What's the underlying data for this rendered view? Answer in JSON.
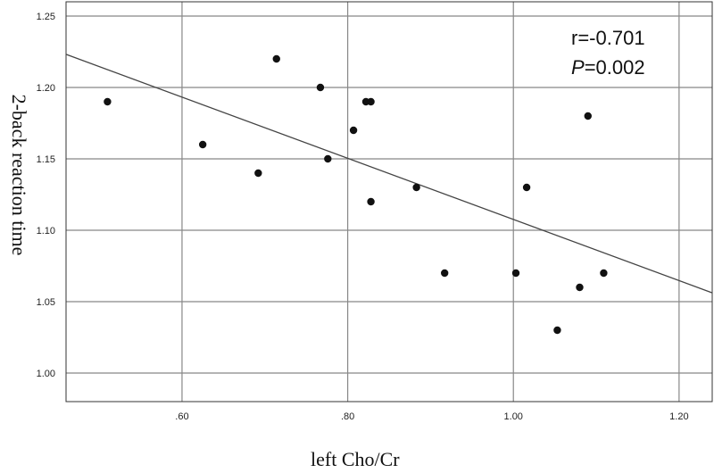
{
  "chart_data": {
    "type": "scatter",
    "title": "",
    "xlabel": "left Cho/Cr",
    "ylabel": "2-back reaction time",
    "xlim": [
      0.46,
      1.24
    ],
    "ylim": [
      0.98,
      1.26
    ],
    "x_ticks": [
      {
        "value": 0.6,
        "label": ".60"
      },
      {
        "value": 0.8,
        "label": ".80"
      },
      {
        "value": 1.0,
        "label": "1.00"
      },
      {
        "value": 1.2,
        "label": "1.20"
      }
    ],
    "y_ticks": [
      {
        "value": 1.0,
        "label": "1.00"
      },
      {
        "value": 1.05,
        "label": "1.05"
      },
      {
        "value": 1.1,
        "label": "1.10"
      },
      {
        "value": 1.15,
        "label": "1.15"
      },
      {
        "value": 1.2,
        "label": "1.20"
      },
      {
        "value": 1.25,
        "label": "1.25"
      }
    ],
    "grid": true,
    "points": [
      {
        "x": 0.51,
        "y": 1.19
      },
      {
        "x": 0.625,
        "y": 1.16
      },
      {
        "x": 0.692,
        "y": 1.14
      },
      {
        "x": 0.714,
        "y": 1.22
      },
      {
        "x": 0.767,
        "y": 1.2
      },
      {
        "x": 0.776,
        "y": 1.15
      },
      {
        "x": 0.807,
        "y": 1.17
      },
      {
        "x": 0.822,
        "y": 1.19
      },
      {
        "x": 0.828,
        "y": 1.19
      },
      {
        "x": 0.828,
        "y": 1.12
      },
      {
        "x": 0.883,
        "y": 1.13
      },
      {
        "x": 0.917,
        "y": 1.07
      },
      {
        "x": 1.003,
        "y": 1.07
      },
      {
        "x": 1.016,
        "y": 1.13
      },
      {
        "x": 1.053,
        "y": 1.03
      },
      {
        "x": 1.08,
        "y": 1.06
      },
      {
        "x": 1.09,
        "y": 1.18
      },
      {
        "x": 1.109,
        "y": 1.07
      }
    ],
    "fit_line": {
      "x": [
        0.46,
        1.24
      ],
      "y": [
        1.2232,
        1.0562
      ]
    },
    "annotation": {
      "r_text": "r=-0.701",
      "p_symbol": "P",
      "p_value": "=0.002"
    }
  }
}
